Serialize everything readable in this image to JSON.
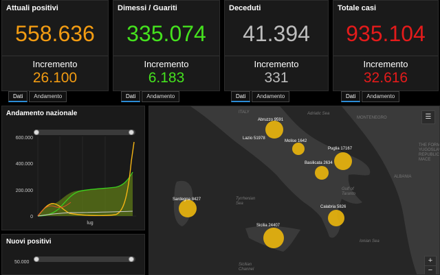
{
  "cards": [
    {
      "title": "Attuali positivi",
      "value": "558.636",
      "inc_label": "Incremento",
      "inc_value": "26.100",
      "color": "#f39c12"
    },
    {
      "title": "Dimessi / Guariti",
      "value": "335.074",
      "inc_label": "Incremento",
      "inc_value": "6.183",
      "color": "#45e21e"
    },
    {
      "title": "Deceduti",
      "value": "41.394",
      "inc_label": "Incremento",
      "inc_value": "331",
      "color": "#bdbdbd"
    },
    {
      "title": "Totale casi",
      "value": "935.104",
      "inc_label": "Incremento",
      "inc_value": "32.616",
      "color": "#e41b1b"
    }
  ],
  "tabs": {
    "dati": "Dati",
    "andamento": "Andamento"
  },
  "trend_panel": {
    "title": "Andamento nazionale",
    "y_ticks": [
      "600.000",
      "400.000",
      "200.000",
      "0"
    ],
    "x_label": "lug"
  },
  "new_panel": {
    "title": "Nuovi positivi",
    "y_tick": "50.000"
  },
  "map": {
    "labels": {
      "italy": "ITALY",
      "adriatic": "Adriatic Sea",
      "montenegro": "MONTENEGRO",
      "fyrom": "THE FORME\nYUGOSLAV\nREPUBLIC\nMACE",
      "albania": "ALBANIA",
      "tyrrhenian": "Tyrrhenian\nSea",
      "taranto": "Gulf of\nTaranto",
      "ionian": "Ionian Sea",
      "sicilian": "Sicilian\nChannel"
    },
    "regions": [
      {
        "name": "Abruzzo 9591"
      },
      {
        "name": "Lazio 51978"
      },
      {
        "name": "Molise 1642"
      },
      {
        "name": "Puglia 17167"
      },
      {
        "name": "Basilicata 2634"
      },
      {
        "name": "Sardegna 8427"
      },
      {
        "name": "Calabria 5826"
      },
      {
        "name": "Sicilia 24407"
      }
    ],
    "zoom_in": "+",
    "zoom_out": "−"
  },
  "colors": {
    "bubble": "#e8b40e",
    "confirmed_area": "#6a8a1a",
    "positives": "#f5b515",
    "recovered": "#3bd11e",
    "deaths": "#cccccc"
  }
}
